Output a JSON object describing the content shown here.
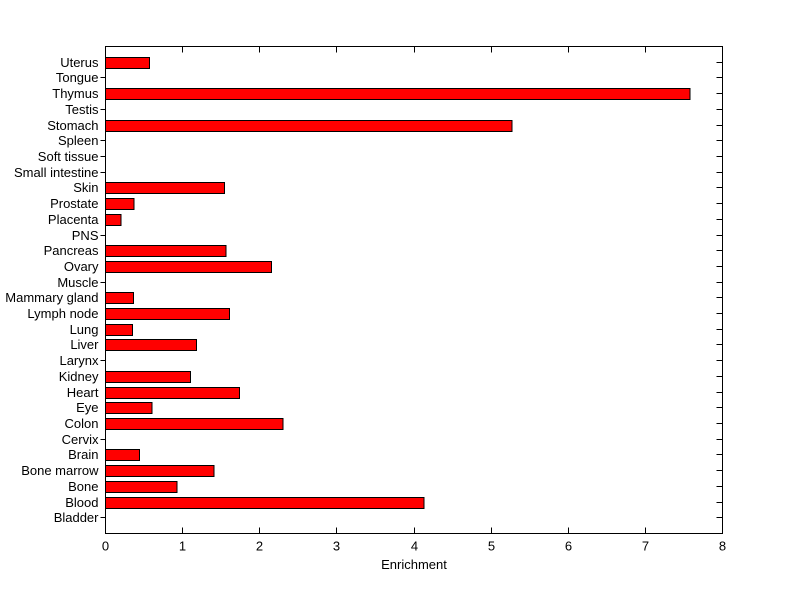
{
  "figure": {
    "background": "#ffffff"
  },
  "chart_data": {
    "type": "bar",
    "orientation": "horizontal",
    "title": "",
    "xlabel": "Enrichment",
    "ylabel": "",
    "xlim": [
      0,
      8
    ],
    "xticks": [
      0,
      1,
      2,
      3,
      4,
      5,
      6,
      7,
      8
    ],
    "grid": false,
    "legend": null,
    "bar_color": "#ff0000",
    "bar_edge_color": "#000000",
    "axis_color": "#000000",
    "text_color": "#000000",
    "categories_top_to_bottom": [
      "Uterus",
      "Tongue",
      "Thymus",
      "Testis",
      "Stomach",
      "Spleen",
      "Soft tissue",
      "Small intestine",
      "Skin",
      "Prostate",
      "Placenta",
      "PNS",
      "Pancreas",
      "Ovary",
      "Muscle",
      "Mammary gland",
      "Lymph node",
      "Lung",
      "Liver",
      "Larynx",
      "Kidney",
      "Heart",
      "Eye",
      "Colon",
      "Cervix",
      "Brain",
      "Bone marrow",
      "Bone",
      "Blood",
      "Bladder"
    ],
    "values": [
      0.57,
      0,
      7.58,
      0,
      5.27,
      0,
      0,
      0,
      1.54,
      0.37,
      0.2,
      0,
      1.56,
      2.15,
      0,
      0.36,
      1.61,
      0.35,
      1.18,
      0,
      1.1,
      1.74,
      0.6,
      2.3,
      0,
      0.44,
      1.41,
      0.93,
      4.13,
      0
    ]
  }
}
